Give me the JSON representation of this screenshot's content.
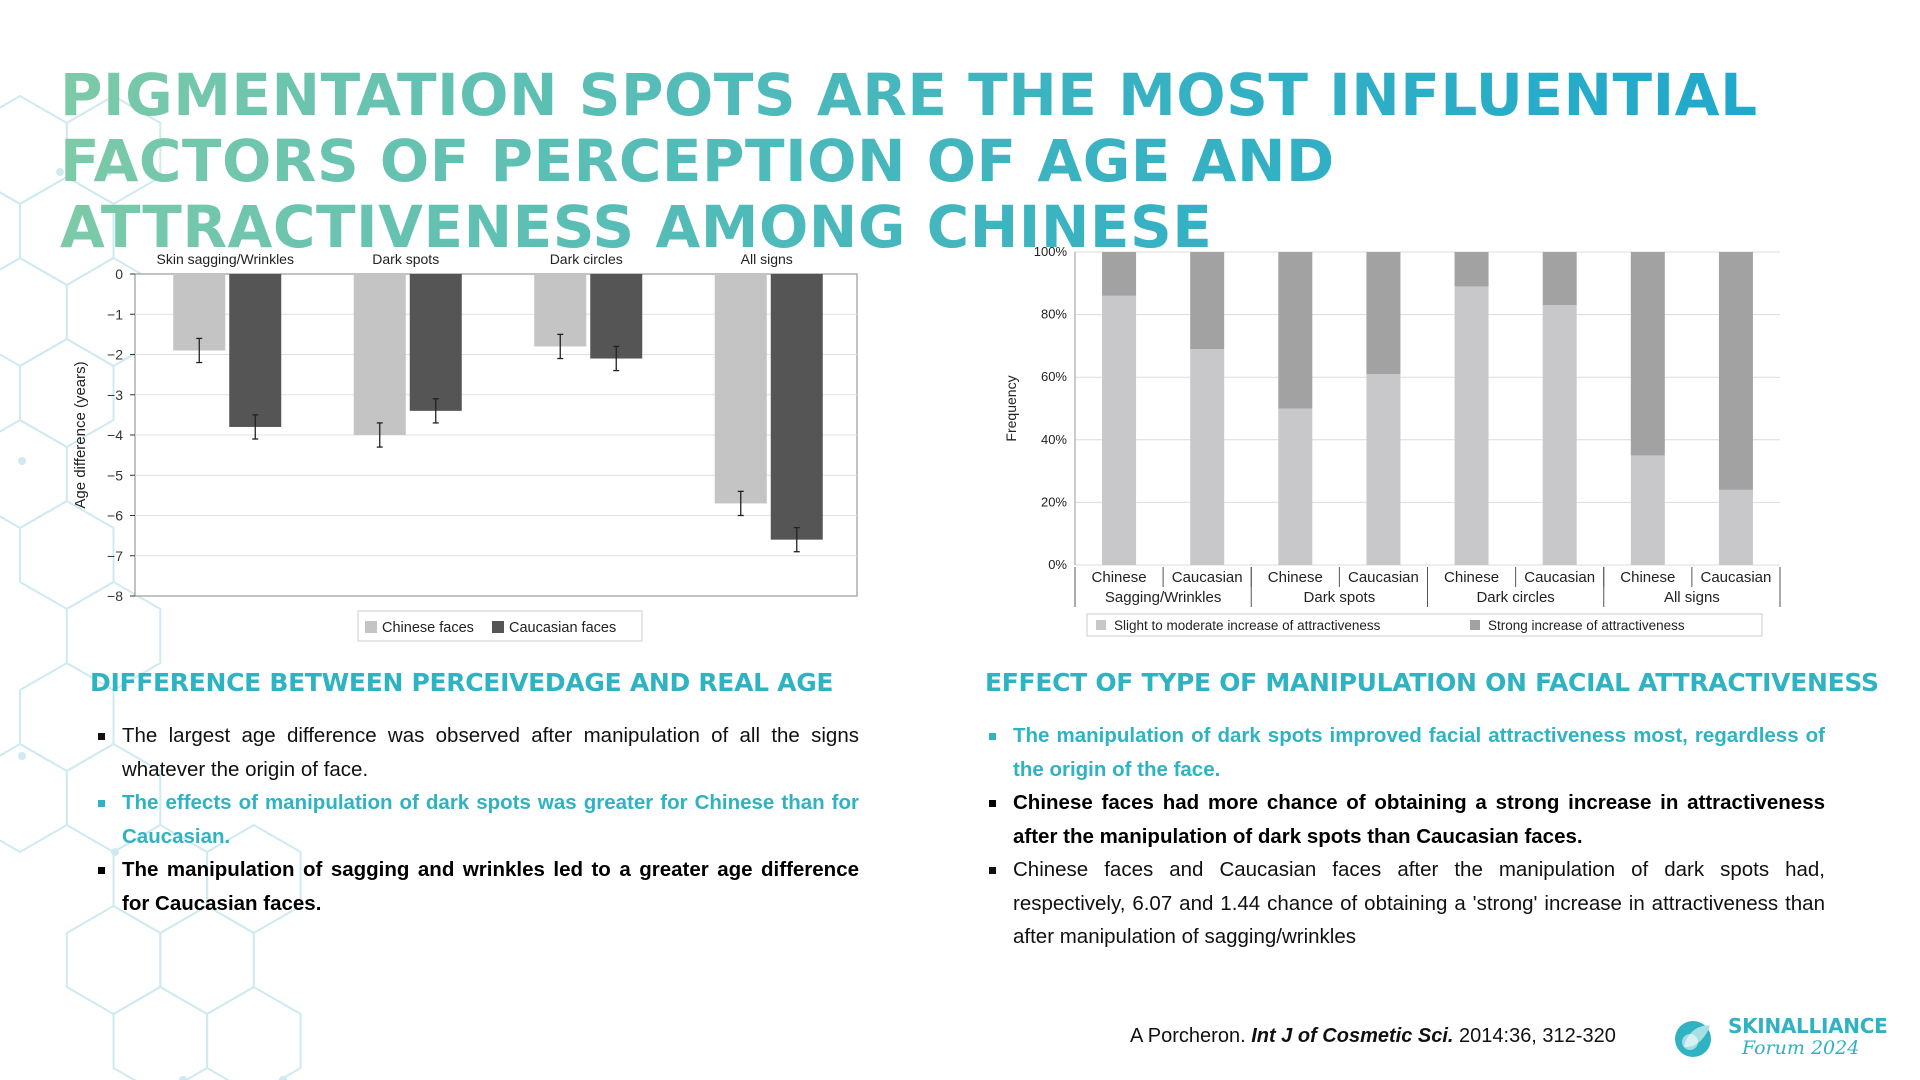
{
  "title": "PIGMENTATION SPOTS ARE THE MOST INFLUENTIAL FACTORS OF PERCEPTION OF AGE AND ATTRACTIVENESS AMONG CHINESE",
  "chart_data": [
    {
      "type": "bar",
      "categories": [
        "Skin sagging/Wrinkles",
        "Dark spots",
        "Dark circles",
        "All signs"
      ],
      "series": [
        {
          "name": "Chinese faces",
          "values": [
            -1.9,
            -4.0,
            -1.8,
            -5.7
          ],
          "err": [
            0.3,
            0.3,
            0.3,
            0.3
          ],
          "color": "#c4c4c4"
        },
        {
          "name": "Caucasian faces",
          "values": [
            -3.8,
            -3.4,
            -2.1,
            -6.6
          ],
          "err": [
            0.3,
            0.3,
            0.3,
            0.3
          ],
          "color": "#555555"
        }
      ],
      "ylabel": "Age difference (years)",
      "ylim": [
        -8,
        0
      ],
      "yticks": [
        "0",
        "−1",
        "−2",
        "−3",
        "−4",
        "−5",
        "−6",
        "−7",
        "−8"
      ],
      "grid": true,
      "legend": "bottom"
    },
    {
      "type": "bar",
      "stacked": true,
      "groups": [
        "Sagging/Wrinkles",
        "Dark spots",
        "Dark circles",
        "All signs"
      ],
      "subcategories": [
        "Chinese",
        "Caucasian"
      ],
      "series": [
        {
          "name": "Slight to moderate increase of attractiveness",
          "values": [
            86,
            69,
            50,
            61,
            89,
            83,
            35,
            24
          ],
          "color": "#c8c8ca"
        },
        {
          "name": "Strong increase of attractiveness",
          "values": [
            14,
            31,
            50,
            39,
            11,
            17,
            65,
            76
          ],
          "color": "#a2a2a2"
        }
      ],
      "ylabel": "Frequency",
      "ylim": [
        0,
        100
      ],
      "yticks": [
        "0%",
        "20%",
        "40%",
        "60%",
        "80%",
        "100%"
      ],
      "grid": true,
      "legend": "bottom"
    }
  ],
  "left": {
    "heading": "DIFFERENCE BETWEEN PERCEIVEDAGE AND REAL AGE",
    "bullets": [
      "The largest age difference was observed after manipulation of all the signs whatever the origin of face.",
      "The effects of manipulation of dark spots was greater for Chinese than for Caucasian.",
      "The manipulation of sagging and wrinkles led to a greater age difference for Caucasian faces."
    ]
  },
  "right": {
    "heading": "EFFECT OF TYPE OF MANIPULATION ON FACIAL ATTRACTIVENESS",
    "bullets": [
      "The manipulation of dark spots improved facial attractiveness most, regardless of the origin of the face.",
      "Chinese faces had more chance of obtaining a strong increase in attractiveness after the manipulation of dark spots than Caucasian faces.",
      "Chinese faces and Caucasian faces after the manipulation of dark spots had, respectively, 6.07 and 1.44 chance of obtaining a 'strong' increase in attractiveness than after manipulation of sagging/wrinkles"
    ]
  },
  "citation": {
    "author": "A Porcheron.",
    "journal": "Int J of Cosmetic Sci.",
    "ref": "2014:36, 312-320"
  },
  "logo": {
    "line1": "SKINALLIANCE",
    "line2": "Forum 2024",
    "icon": "leaf-drop-icon"
  }
}
